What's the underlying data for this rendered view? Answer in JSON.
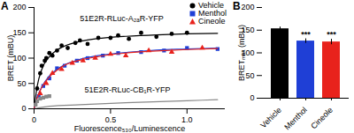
{
  "chart_data": [
    {
      "type": "scatter",
      "title": "A",
      "x_label": "Fluorescence₅₃₀/Luminescence",
      "y_label": "BRET (mBU)",
      "xlim": [
        0,
        1.25
      ],
      "xticks": [
        0,
        0.5,
        {
          "value": 1,
          "label": "1.0"
        }
      ],
      "ylim": [
        0,
        200
      ],
      "yticks": [
        0,
        50,
        100,
        150,
        200
      ],
      "grid": false,
      "legend": "top-right",
      "series": [
        {
          "name": "Vehicle",
          "color": "#000000",
          "marker": "circle",
          "x": [
            0.02,
            0.04,
            0.05,
            0.07,
            0.08,
            0.1,
            0.12,
            0.15,
            0.18,
            0.22,
            0.27,
            0.3,
            0.35,
            0.42,
            0.5,
            0.55,
            0.62,
            0.7,
            0.8,
            0.9,
            1.0
          ],
          "values": [
            40,
            70,
            85,
            95,
            100,
            110,
            105,
            115,
            125,
            120,
            130,
            135,
            128,
            140,
            140,
            145,
            138,
            150,
            142,
            148,
            150
          ],
          "fit": {
            "x": [
              0,
              0.02,
              0.05,
              0.1,
              0.15,
              0.2,
              0.3,
              0.4,
              0.5,
              0.6,
              0.8,
              1.0,
              1.2
            ],
            "values": [
              0,
              44,
              77.5,
              103,
              116,
              124,
              133,
              138,
              141,
              143,
              146,
              148,
              149
            ]
          }
        },
        {
          "name": "Menthol",
          "color": "#1f3fd6",
          "marker": "square",
          "x": [
            0.03,
            0.06,
            0.1,
            0.15,
            0.2,
            0.28,
            0.35,
            0.45,
            0.55,
            0.7,
            0.85,
            1.0,
            1.2
          ],
          "values": [
            25,
            45,
            60,
            80,
            85,
            95,
            100,
            105,
            110,
            112,
            115,
            120,
            118
          ],
          "fit": {
            "x": [
              0,
              0.02,
              0.05,
              0.1,
              0.15,
              0.2,
              0.3,
              0.4,
              0.5,
              0.6,
              0.8,
              1.0,
              1.2
            ],
            "values": [
              0,
              22,
              43,
              65,
              78,
              87,
              97.5,
              104,
              108,
              111,
              116,
              118,
              120
            ]
          }
        },
        {
          "name": "Cineole",
          "color": "#e8221c",
          "marker": "triangle",
          "x": [
            0.04,
            0.08,
            0.12,
            0.18,
            0.25,
            0.32,
            0.4,
            0.5,
            0.6,
            0.75,
            0.9,
            1.1
          ],
          "values": [
            30,
            50,
            70,
            78,
            90,
            95,
            100,
            108,
            105,
            115,
            112,
            120
          ],
          "fit": {
            "x": [
              0,
              0.02,
              0.05,
              0.1,
              0.15,
              0.2,
              0.3,
              0.4,
              0.5,
              0.6,
              0.8,
              1.0,
              1.2
            ],
            "values": [
              0,
              21,
              42,
              63,
              76,
              86,
              96,
              102,
              107,
              110,
              114,
              117,
              119
            ]
          }
        }
      ],
      "reference": {
        "name": "51E2R-RLuc-CB₁R-YFP",
        "color": "#888888",
        "marker": "square",
        "x": [
          0.01,
          0.02,
          0.04,
          0.06,
          0.08,
          0.1
        ],
        "values": [
          8,
          15,
          20,
          22,
          24,
          25
        ],
        "fit": {
          "x": [
            0,
            0.1,
            0.3,
            0.6,
            1.0,
            1.2
          ],
          "values": [
            0,
            5,
            8,
            12,
            16,
            18
          ]
        },
        "label_x": 0.33,
        "label_y": 38
      },
      "annotation": {
        "text": "51E2R-RLuc-A₂ₐR-YFP",
        "x": 0.3,
        "y": 178
      }
    },
    {
      "type": "bar",
      "title": "B",
      "y_label": "BRETₘₐₓ (mBU)",
      "categories": [
        "Vehicle",
        "Menthol",
        "Cineole"
      ],
      "values": [
        153,
        126,
        124
      ],
      "error": [
        4,
        5,
        6
      ],
      "significance": [
        null,
        "***",
        "***"
      ],
      "colors": [
        "#000000",
        "#1f3fd6",
        "#e8221c"
      ],
      "ylim": [
        0,
        200
      ],
      "yticks": [
        0,
        50,
        100,
        150,
        200
      ],
      "grid": false
    }
  ]
}
